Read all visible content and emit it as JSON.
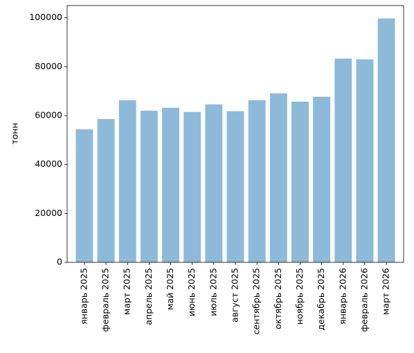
{
  "chart_data": {
    "type": "bar",
    "y_label": "тонн",
    "categories": [
      "январь 2025",
      "февраль 2025",
      "март 2025",
      "апрель 2025",
      "май 2025",
      "июнь 2025",
      "июль 2025",
      "август 2025",
      "сентябрь 2025",
      "октябрь 2025",
      "ноябрь 2025",
      "декабрь 2025",
      "январь 2026",
      "февраль 2026",
      "март 2026"
    ],
    "values": [
      54400,
      58600,
      66300,
      62000,
      63200,
      61500,
      64600,
      61800,
      66300,
      69100,
      65700,
      67700,
      83300,
      83000,
      99700
    ],
    "color": "#8ebad9",
    "ylim": [
      0,
      105000
    ],
    "yticks": [
      0,
      20000,
      40000,
      60000,
      80000,
      100000
    ],
    "grid": false
  }
}
